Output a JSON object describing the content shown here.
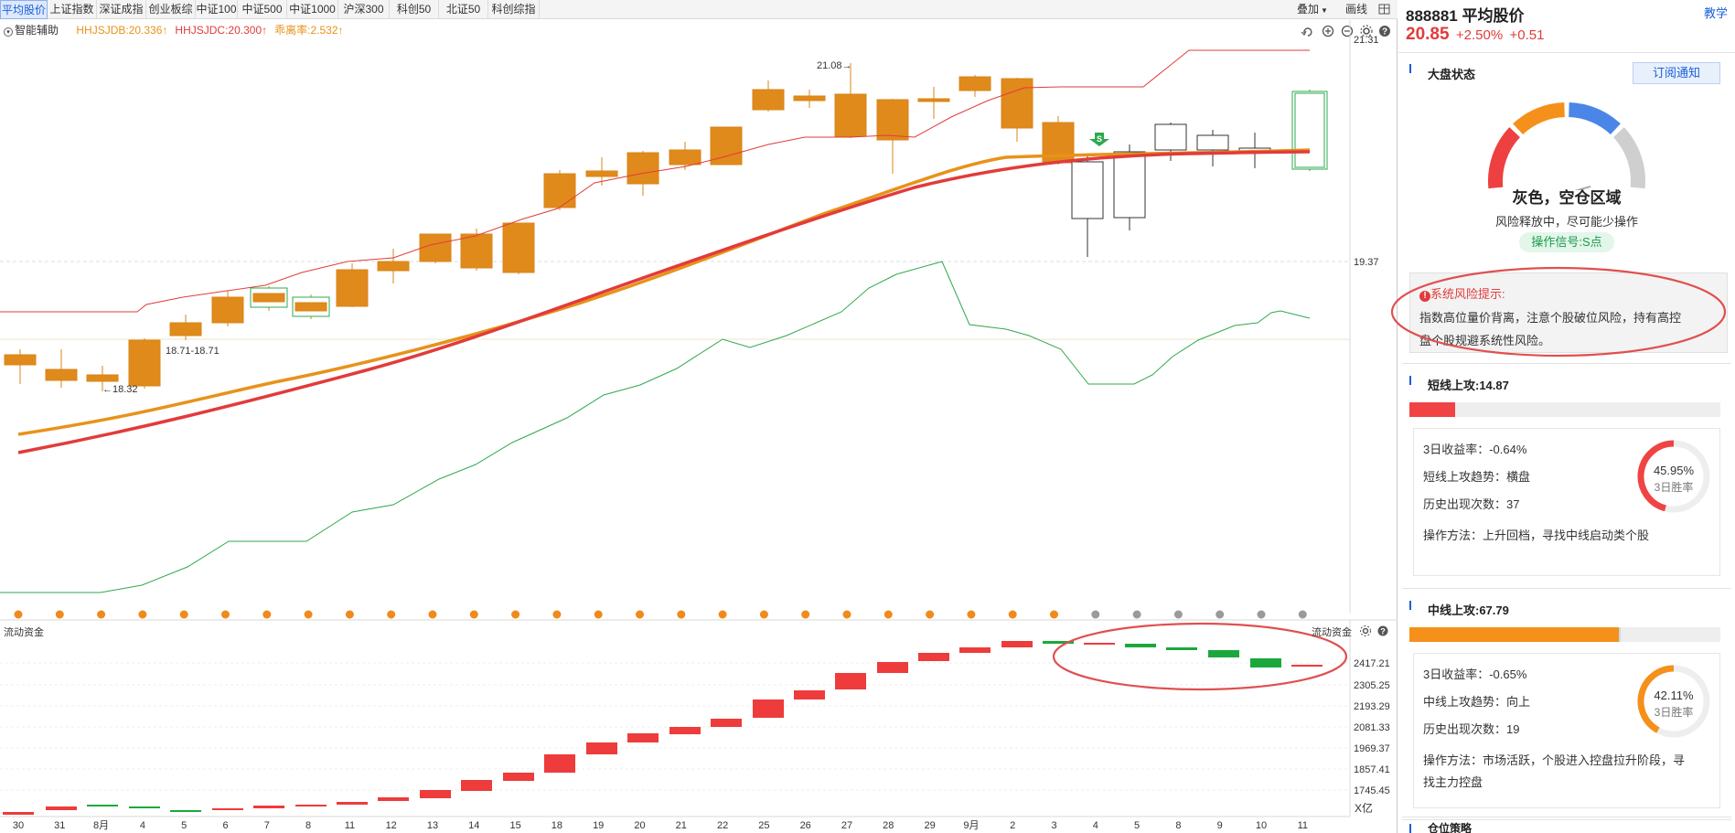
{
  "tabs": [
    "平均股价",
    "上证指数",
    "深证成指",
    "创业板综",
    "中证100",
    "中证500",
    "中证1000",
    "沪深300",
    "科创50",
    "北证50",
    "科创综指"
  ],
  "toolbar": {
    "overlay": "叠加",
    "draw": "画线"
  },
  "indicator_bar": {
    "toggle": "智能辅助",
    "items": [
      {
        "text": "HHJSJDB:20.336",
        "color": "#e8921a"
      },
      {
        "text": "HHJSJDC:20.300",
        "color": "#e23b3b"
      },
      {
        "text": "乖离率:2.532",
        "color": "#e8921a"
      }
    ]
  },
  "main_chart": {
    "y_labels": [
      "21.31",
      "19.37"
    ],
    "annotations": {
      "high": "21.08",
      "low": "18.32",
      "range": "18.71-18.71"
    },
    "signal": "S"
  },
  "sub_chart": {
    "title": "流动资金",
    "title_right": "流动资金",
    "y_labels": [
      "2417.21",
      "2305.25",
      "2193.29",
      "2081.33",
      "1969.37",
      "1857.41",
      "1745.45"
    ],
    "unit": "X亿"
  },
  "x_axis": [
    "30",
    "31",
    "8月",
    "4",
    "5",
    "6",
    "7",
    "8",
    "11",
    "12",
    "13",
    "14",
    "15",
    "18",
    "19",
    "20",
    "21",
    "22",
    "25",
    "26",
    "27",
    "28",
    "29",
    "9月",
    "2",
    "3",
    "4",
    "5",
    "8",
    "9",
    "10",
    "11"
  ],
  "sidebar": {
    "code": "888881",
    "name": "平均股价",
    "help": "教学",
    "price": "20.85",
    "pct": "+2.50%",
    "chg": "+0.51",
    "market": {
      "title": "大盘状态",
      "subscribe": "订阅通知",
      "status": "灰色，空仓区域",
      "desc": "风险释放中，尽可能少操作",
      "signal": "操作信号:S点"
    },
    "risk": {
      "title": "系统风险提示:",
      "text1": "指数高位量价背离，注意个股破位风险，持有高控",
      "text2": "盘个股规避系统性风险。"
    },
    "short": {
      "title": "短线上攻:14.87",
      "bar_level": 0.148,
      "bar_color": "#f04444",
      "rate": "3日收益率：-0.64%",
      "trend": "短线上攻趋势：横盘",
      "count": "历史出现次数：37",
      "method": "操作方法：上升回档，寻找中线启动类个股",
      "winrate": "45.95%",
      "winlabel": "3日胜率",
      "win_level": 0.4595
    },
    "mid": {
      "title": "中线上攻:67.79",
      "bar_level": 0.678,
      "bar_color": "#f5901a",
      "rate": "3日收益率：-0.65%",
      "trend": "中线上攻趋势：向上",
      "count": "历史出现次数：19",
      "method1": "操作方法：市场活跃，个股进入控盘拉升阶段，寻",
      "method2": "找主力控盘",
      "winrate": "42.11%",
      "winlabel": "3日胜率",
      "win_level": 0.4211
    },
    "next": "仓位策略"
  }
}
